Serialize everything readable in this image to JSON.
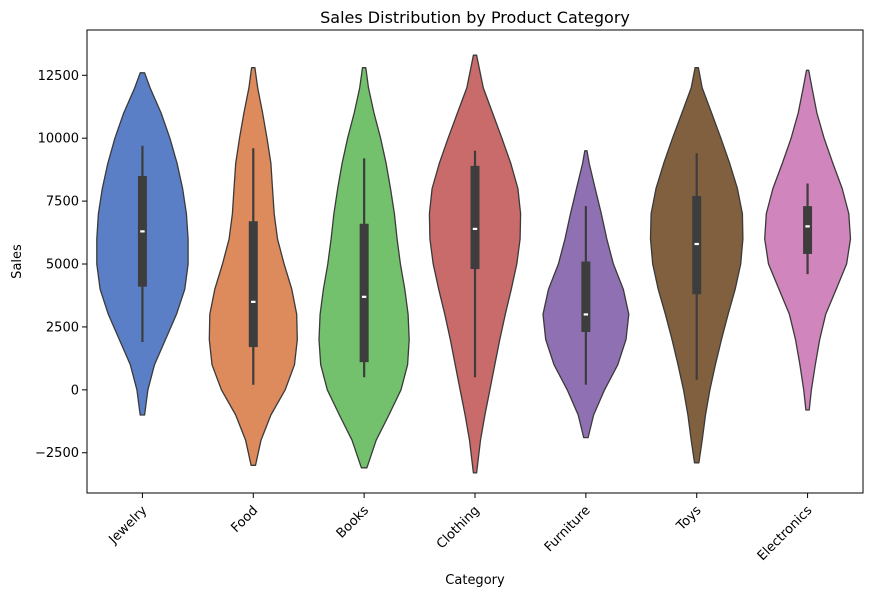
{
  "chart_data": {
    "type": "violin",
    "title": "Sales Distribution by Product Category",
    "xlabel": "Category",
    "ylabel": "Sales",
    "ylim": [
      -4100,
      14300
    ],
    "yticks": [
      -2500,
      0,
      2500,
      5000,
      7500,
      10000,
      12500
    ],
    "ytick_labels": [
      "−2500",
      "0",
      "2500",
      "5000",
      "7500",
      "10000",
      "12500"
    ],
    "grid": false,
    "legend": "none",
    "categories": [
      {
        "name": "Jewelry",
        "color": "#5a7fc6",
        "kde_min": -1000,
        "kde_max": 12600,
        "whisker_low": 1900,
        "q1": 4100,
        "median": 6300,
        "q3": 8500,
        "whisker_high": 9700,
        "density": [
          [
            -1000,
            0.04
          ],
          [
            0,
            0.1
          ],
          [
            1000,
            0.22
          ],
          [
            2000,
            0.42
          ],
          [
            3000,
            0.62
          ],
          [
            4000,
            0.77
          ],
          [
            5000,
            0.83
          ],
          [
            6000,
            0.83
          ],
          [
            7000,
            0.8
          ],
          [
            8000,
            0.73
          ],
          [
            9000,
            0.63
          ],
          [
            10000,
            0.5
          ],
          [
            11000,
            0.34
          ],
          [
            12000,
            0.14
          ],
          [
            12600,
            0.04
          ]
        ]
      },
      {
        "name": "Food",
        "color": "#dd8a5c",
        "kde_min": -3000,
        "kde_max": 12800,
        "whisker_low": 200,
        "q1": 1700,
        "median": 3500,
        "q3": 6700,
        "whisker_high": 9600,
        "density": [
          [
            -3000,
            0.04
          ],
          [
            -2000,
            0.14
          ],
          [
            -1000,
            0.32
          ],
          [
            0,
            0.58
          ],
          [
            1000,
            0.75
          ],
          [
            2000,
            0.8
          ],
          [
            3000,
            0.79
          ],
          [
            4000,
            0.7
          ],
          [
            5000,
            0.56
          ],
          [
            6000,
            0.44
          ],
          [
            7000,
            0.38
          ],
          [
            8000,
            0.35
          ],
          [
            9000,
            0.32
          ],
          [
            10000,
            0.25
          ],
          [
            11000,
            0.17
          ],
          [
            12000,
            0.08
          ],
          [
            12800,
            0.03
          ]
        ]
      },
      {
        "name": "Books",
        "color": "#73c16c",
        "kde_min": -3100,
        "kde_max": 12800,
        "whisker_low": 500,
        "q1": 1100,
        "median": 3700,
        "q3": 6600,
        "whisker_high": 9200,
        "density": [
          [
            -3100,
            0.05
          ],
          [
            -2000,
            0.22
          ],
          [
            -1000,
            0.45
          ],
          [
            0,
            0.67
          ],
          [
            1000,
            0.79
          ],
          [
            2000,
            0.82
          ],
          [
            3000,
            0.8
          ],
          [
            4000,
            0.74
          ],
          [
            5000,
            0.66
          ],
          [
            6000,
            0.6
          ],
          [
            7000,
            0.55
          ],
          [
            8000,
            0.48
          ],
          [
            9000,
            0.4
          ],
          [
            10000,
            0.3
          ],
          [
            11000,
            0.18
          ],
          [
            12000,
            0.08
          ],
          [
            12800,
            0.03
          ]
        ]
      },
      {
        "name": "Clothing",
        "color": "#c96b6b",
        "kde_min": -3300,
        "kde_max": 13300,
        "whisker_low": 500,
        "q1": 4800,
        "median": 6400,
        "q3": 8900,
        "whisker_high": 9500,
        "density": [
          [
            -3300,
            0.03
          ],
          [
            -2000,
            0.1
          ],
          [
            -1000,
            0.18
          ],
          [
            0,
            0.27
          ],
          [
            1000,
            0.36
          ],
          [
            2000,
            0.45
          ],
          [
            3000,
            0.55
          ],
          [
            4000,
            0.66
          ],
          [
            5000,
            0.76
          ],
          [
            6000,
            0.82
          ],
          [
            7000,
            0.83
          ],
          [
            8000,
            0.78
          ],
          [
            9000,
            0.65
          ],
          [
            10000,
            0.49
          ],
          [
            11000,
            0.32
          ],
          [
            12000,
            0.15
          ],
          [
            13300,
            0.03
          ]
        ]
      },
      {
        "name": "Furniture",
        "color": "#8f71b3",
        "kde_min": -1900,
        "kde_max": 9500,
        "whisker_low": 200,
        "q1": 2300,
        "median": 3000,
        "q3": 5100,
        "whisker_high": 7300,
        "density": [
          [
            -1900,
            0.04
          ],
          [
            -1000,
            0.14
          ],
          [
            0,
            0.34
          ],
          [
            1000,
            0.58
          ],
          [
            2000,
            0.73
          ],
          [
            3000,
            0.78
          ],
          [
            4000,
            0.68
          ],
          [
            5000,
            0.5
          ],
          [
            6000,
            0.38
          ],
          [
            7000,
            0.28
          ],
          [
            8000,
            0.17
          ],
          [
            9000,
            0.06
          ],
          [
            9500,
            0.02
          ]
        ]
      },
      {
        "name": "Toys",
        "color": "#80603f",
        "kde_min": -2900,
        "kde_max": 12800,
        "whisker_low": 400,
        "q1": 3800,
        "median": 5800,
        "q3": 7700,
        "whisker_high": 9400,
        "density": [
          [
            -2900,
            0.04
          ],
          [
            -2000,
            0.1
          ],
          [
            -1000,
            0.16
          ],
          [
            0,
            0.24
          ],
          [
            1000,
            0.34
          ],
          [
            2000,
            0.45
          ],
          [
            3000,
            0.57
          ],
          [
            4000,
            0.7
          ],
          [
            5000,
            0.8
          ],
          [
            6000,
            0.84
          ],
          [
            7000,
            0.83
          ],
          [
            8000,
            0.74
          ],
          [
            9000,
            0.6
          ],
          [
            10000,
            0.44
          ],
          [
            11000,
            0.27
          ],
          [
            12000,
            0.1
          ],
          [
            12800,
            0.03
          ]
        ]
      },
      {
        "name": "Electronics",
        "color": "#d185bd",
        "kde_min": -800,
        "kde_max": 12700,
        "whisker_low": 4600,
        "q1": 5400,
        "median": 6500,
        "q3": 7300,
        "whisker_high": 8200,
        "density": [
          [
            -800,
            0.03
          ],
          [
            0,
            0.07
          ],
          [
            1000,
            0.14
          ],
          [
            2000,
            0.22
          ],
          [
            3000,
            0.33
          ],
          [
            4000,
            0.52
          ],
          [
            5000,
            0.71
          ],
          [
            6000,
            0.78
          ],
          [
            7000,
            0.75
          ],
          [
            8000,
            0.63
          ],
          [
            9000,
            0.46
          ],
          [
            10000,
            0.3
          ],
          [
            11000,
            0.17
          ],
          [
            12000,
            0.08
          ],
          [
            12700,
            0.02
          ]
        ]
      }
    ]
  }
}
